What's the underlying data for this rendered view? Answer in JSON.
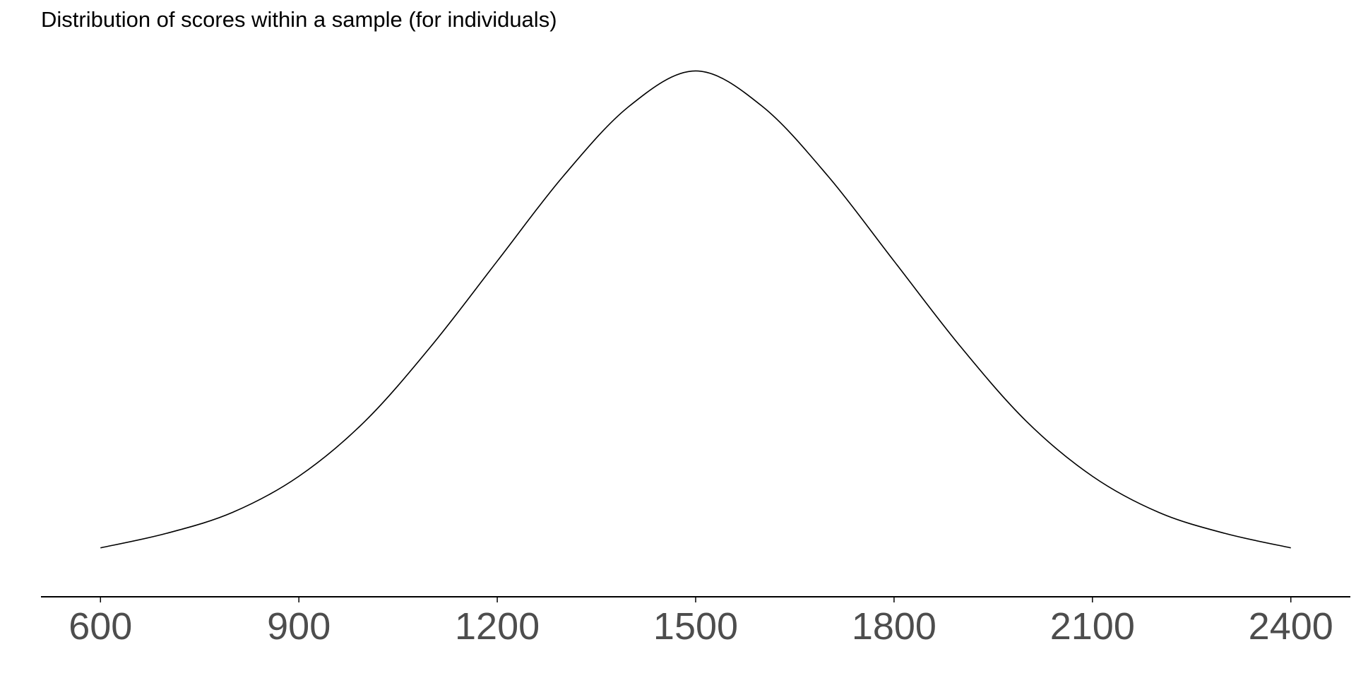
{
  "chart_data": {
    "type": "line",
    "title": "Distribution of scores within a sample (for individuals)",
    "xlabel": "",
    "ylabel": "",
    "xlim": [
      510,
      2490
    ],
    "ylim": [
      0,
      1.05
    ],
    "grid": false,
    "x_ticks": [
      600,
      900,
      1200,
      1500,
      1800,
      2100,
      2400
    ],
    "x_tick_labels": [
      "600",
      "900",
      "1200",
      "1500",
      "1800",
      "2100",
      "2400"
    ],
    "series": [
      {
        "x": [
          600,
          700,
          800,
          900,
          1000,
          1100,
          1200,
          1300,
          1400,
          1500,
          1600,
          1700,
          1800,
          1900,
          2000,
          2100,
          2200,
          2300,
          2400
        ],
        "y": [
          0.047,
          0.076,
          0.118,
          0.19,
          0.3,
          0.45,
          0.62,
          0.79,
          0.93,
          1.0,
          0.93,
          0.79,
          0.62,
          0.45,
          0.3,
          0.19,
          0.118,
          0.076,
          0.047
        ],
        "color": "#000000"
      }
    ]
  }
}
